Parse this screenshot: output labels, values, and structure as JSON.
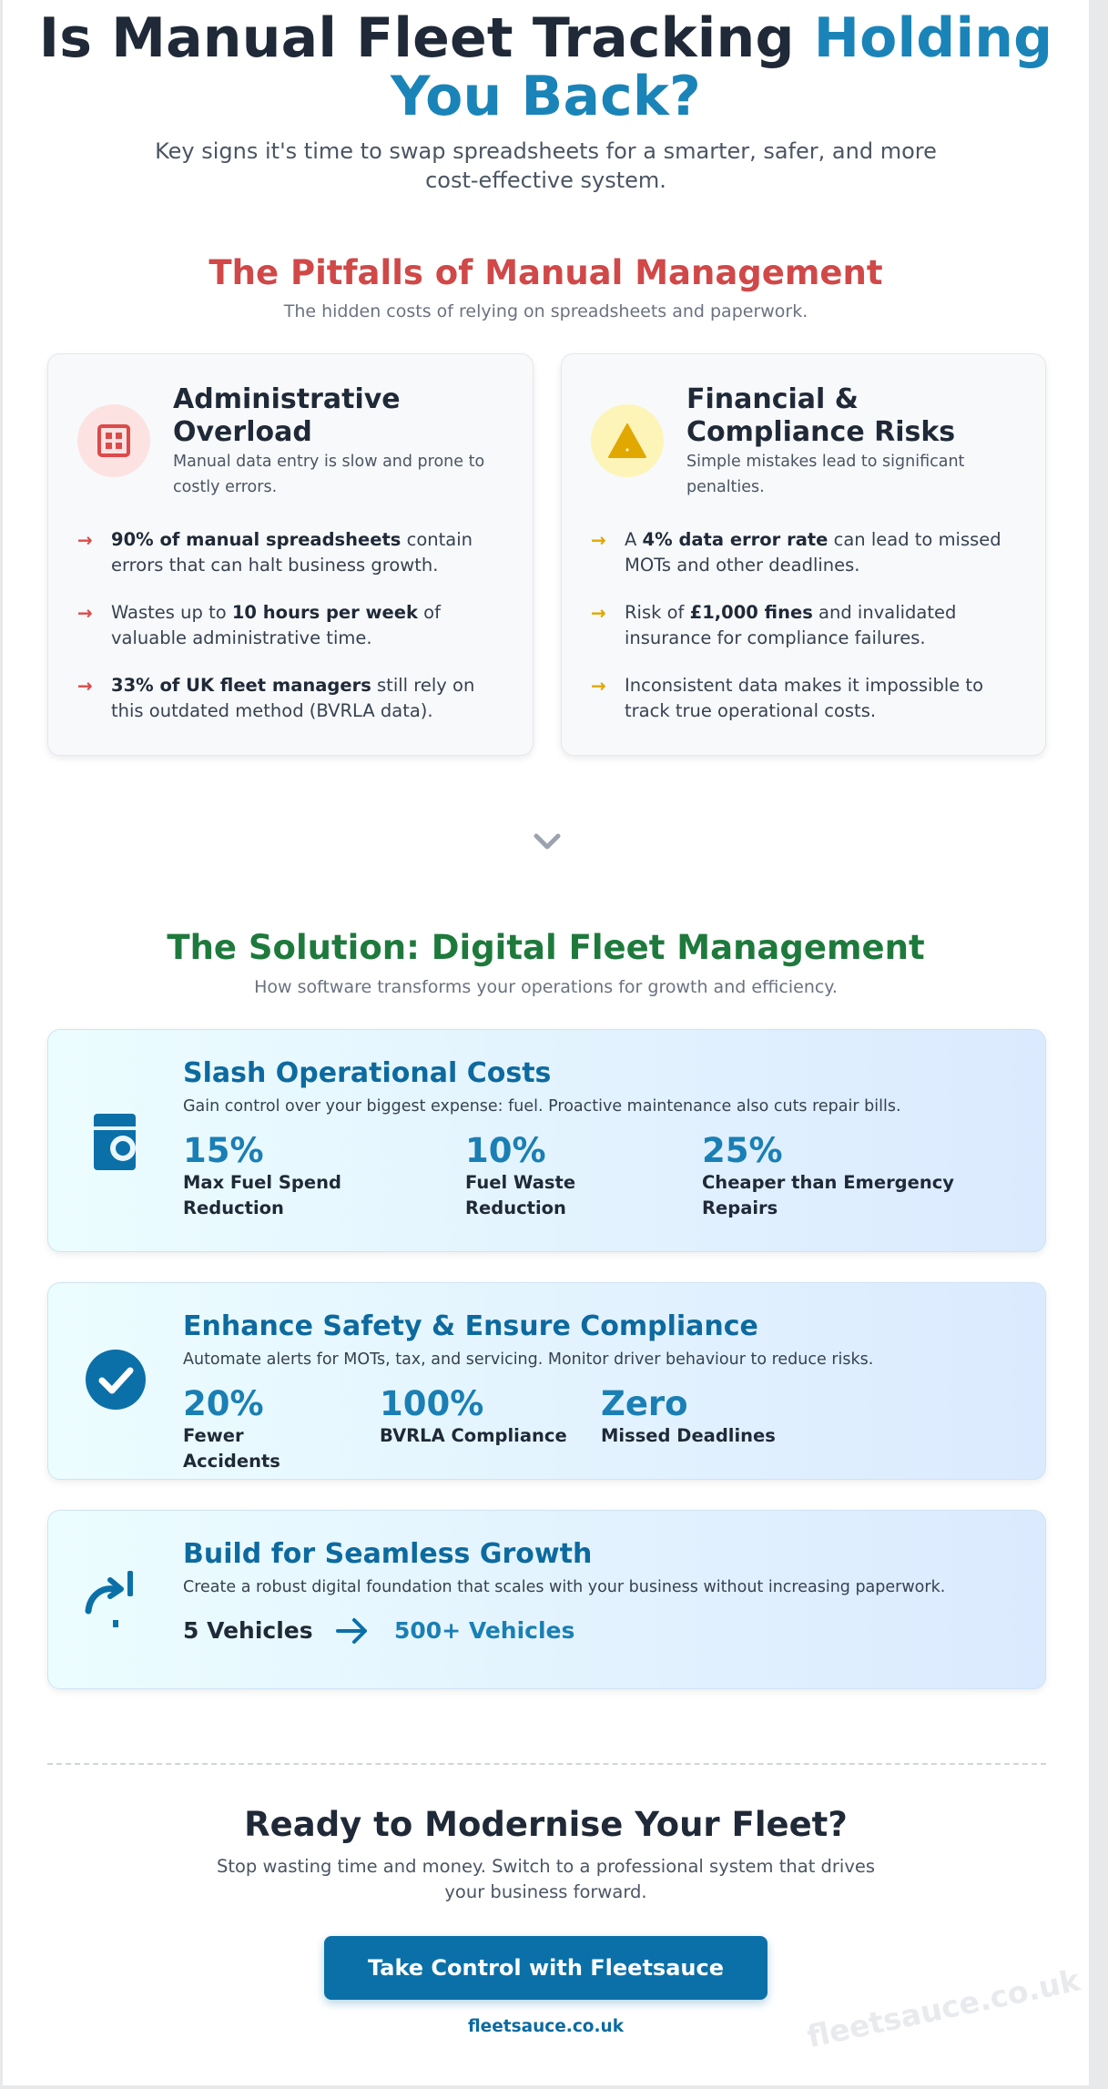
{
  "hero": {
    "title_main": "Is Manual Fleet Tracking ",
    "title_accent": "Holding You Back?",
    "subtitle": "Key signs it's time to swap spreadsheets for a smarter, safer, and more cost-effective system."
  },
  "pitfalls": {
    "title": "The Pitfalls of Manual Management",
    "subtitle": "The hidden costs of relying on spreadsheets and paperwork.",
    "cards": [
      {
        "icon": "grid-icon",
        "title": "Administrative Overload",
        "description": "Manual data entry is slow and prone to costly errors.",
        "accent": "#dc4a4a",
        "bullets": [
          {
            "bold": "90% of manual spreadsheets",
            "pre": "",
            "post": " contain errors that can halt business growth."
          },
          {
            "pre": "Wastes up to ",
            "bold": "10 hours per week",
            "post": " of valuable administrative time."
          },
          {
            "bold": "33% of UK fleet managers",
            "pre": "",
            "post": " still rely on this outdated method (BVRLA data)."
          }
        ]
      },
      {
        "icon": "warning-icon",
        "title": "Financial & Compliance Risks",
        "description": "Simple mistakes lead to significant penalties.",
        "accent": "#e0a800",
        "bullets": [
          {
            "pre": "A ",
            "bold": "4% data error rate",
            "post": " can lead to missed MOTs and other deadlines."
          },
          {
            "pre": "Risk of ",
            "bold": "£1,000 fines",
            "post": " and invalidated insurance for compliance failures."
          },
          {
            "pre": "Inconsistent data makes it impossible to track true operational costs.",
            "bold": "",
            "post": ""
          }
        ]
      }
    ]
  },
  "solution": {
    "title": "The Solution: Digital Fleet Management",
    "subtitle": "How software transforms your operations for growth and efficiency.",
    "cards": [
      {
        "icon": "fuel-pump-icon",
        "title": "Slash Operational Costs",
        "description": "Gain control over your biggest expense: fuel. Proactive maintenance also cuts repair bills.",
        "stats": [
          {
            "value": "15%",
            "label": "Max Fuel Spend Reduction"
          },
          {
            "value": "10%",
            "label": "Fuel Waste Reduction"
          },
          {
            "value": "25%",
            "label": "Cheaper than Emergency Repairs"
          }
        ]
      },
      {
        "icon": "check-circle-icon",
        "title": "Enhance Safety & Ensure Compliance",
        "description": "Automate alerts for MOTs, tax, and servicing. Monitor driver behaviour to reduce risks.",
        "stats": [
          {
            "value": "20%",
            "label": "Fewer Accidents"
          },
          {
            "value": "100%",
            "label": "BVRLA Compliance"
          },
          {
            "value": "Zero",
            "label": "Missed Deadlines"
          }
        ]
      },
      {
        "icon": "growth-arrow-icon",
        "title": "Build for Seamless Growth",
        "description": "Create a robust digital foundation that scales with your business without increasing paperwork.",
        "from": "5 Vehicles",
        "to": "500+ Vehicles"
      }
    ]
  },
  "cta": {
    "title": "Ready to Modernise Your Fleet?",
    "subtitle": "Stop wasting time and money. Switch to a professional system that drives your business forward.",
    "button": "Take Control with Fleetsauce",
    "link": "fleetsauce.co.uk",
    "watermark": "fleetsauce.co.uk"
  },
  "colors": {
    "brand_blue": "#0b70a8",
    "danger_red": "#dc4a4a",
    "warning_yellow": "#e0a800",
    "success_green": "#1e7a3c"
  }
}
